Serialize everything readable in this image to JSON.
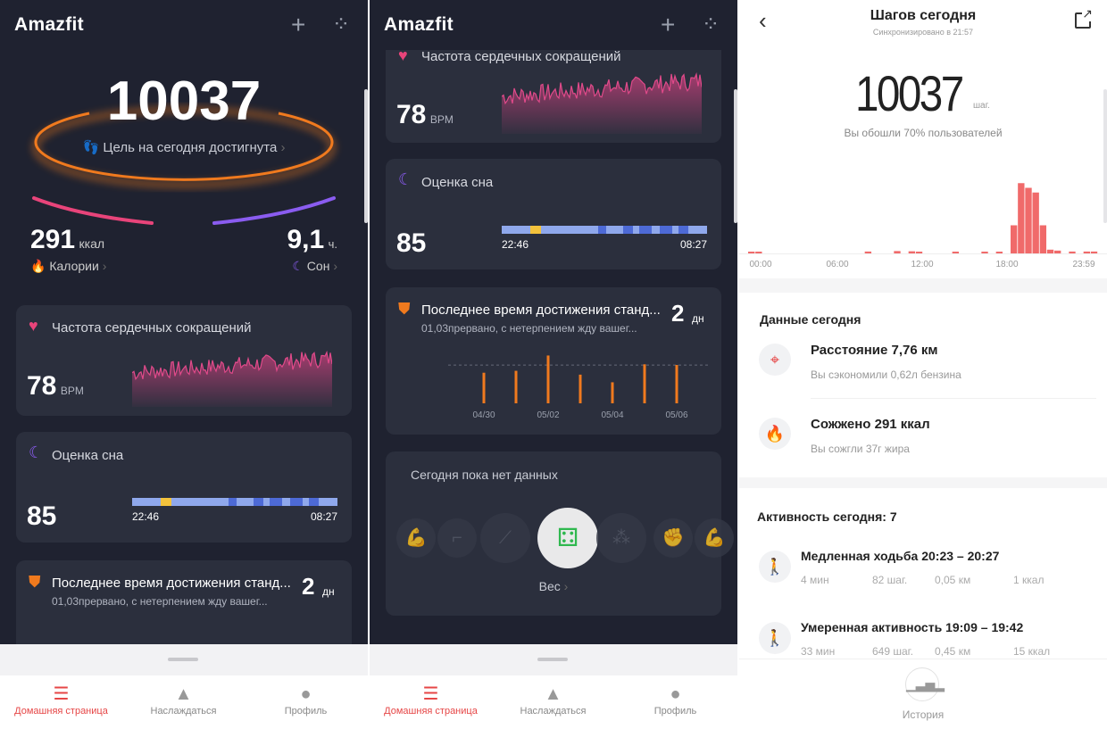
{
  "app": {
    "title": "Amazfit",
    "add_icon": "plus-icon",
    "grid_icon": "grid-icon"
  },
  "colors": {
    "accent": "#e64646",
    "orange": "#f07a1e",
    "purple": "#8a5cf0",
    "pink": "#e8447a",
    "card": "#2b2f3d",
    "bg": "#1f2230",
    "step_bar": "#f06a6a"
  },
  "home": {
    "steps": "10037",
    "goal_text": "Цель на сегодня достигнута",
    "calories": {
      "value": "291",
      "unit": "ккал",
      "label": "Калории"
    },
    "sleep": {
      "value": "9,1",
      "unit": "ч.",
      "label": "Сон"
    },
    "heart": {
      "title": "Частота сердечных сокращений",
      "value": "78",
      "unit": "BPM"
    },
    "sleep_card": {
      "title": "Оценка сна",
      "score": "85",
      "start": "22:46",
      "end": "08:27",
      "segments": [
        [
          "light",
          0.14
        ],
        [
          "awake",
          0.05
        ],
        [
          "light",
          0.28
        ],
        [
          "deep",
          0.04
        ],
        [
          "light",
          0.08
        ],
        [
          "deep",
          0.05
        ],
        [
          "light",
          0.03
        ],
        [
          "deep",
          0.06
        ],
        [
          "light",
          0.04
        ],
        [
          "deep",
          0.06
        ],
        [
          "light",
          0.03
        ],
        [
          "deep",
          0.05
        ],
        [
          "light",
          0.09
        ]
      ]
    },
    "streak": {
      "title": "Последнее время достижения станд...",
      "subtitle": "01,03прервано, с нетерпением жду вашег...",
      "value": "2",
      "unit": "дн"
    }
  },
  "chart_data": [
    {
      "type": "bar",
      "title": "",
      "categories": [
        "04/30",
        "05/01",
        "05/02",
        "05/03",
        "05/04",
        "05/05",
        "05/06"
      ],
      "tick_labels": [
        "04/30",
        "05/02",
        "05/04",
        "05/06"
      ],
      "values": [
        8000,
        8500,
        12500,
        7500,
        5500,
        10200,
        10037
      ],
      "goal": 10000,
      "ylim": [
        0,
        14000
      ]
    },
    {
      "type": "bar",
      "title": "",
      "x_tick_labels": [
        "00:00",
        "06:00",
        "12:00",
        "18:00",
        "23:59"
      ],
      "bin_minutes": 30,
      "values": [
        30,
        20,
        0,
        0,
        0,
        0,
        0,
        0,
        0,
        0,
        0,
        0,
        0,
        0,
        0,
        0,
        40,
        0,
        0,
        0,
        50,
        0,
        45,
        20,
        0,
        0,
        0,
        0,
        10,
        0,
        0,
        0,
        15,
        0,
        20,
        0,
        600,
        1500,
        1400,
        1300,
        600,
        80,
        60,
        0,
        40,
        0,
        40,
        40
      ]
    }
  ],
  "weight_card": {
    "title": "Сегодня пока нет данных",
    "label": "Вес",
    "icons": [
      "arm-icon",
      "squat-icon",
      "leg-icon",
      "scale-icon",
      "molecule-icon",
      "fist-icon",
      "arm-icon"
    ]
  },
  "nav": [
    {
      "label": "Домашняя страница",
      "icon": "home-stack-icon",
      "active": true
    },
    {
      "label": "Наслаждаться",
      "icon": "shapes-icon"
    },
    {
      "label": "Профиль",
      "icon": "profile-icon"
    }
  ],
  "steps_detail": {
    "title": "Шагов сегодня",
    "synced": "Синхронизировано в 21:57",
    "steps": "10037",
    "unit": "шаг.",
    "compare": "Вы обошли 70% пользователей",
    "data_title": "Данные сегодня",
    "data": [
      {
        "title": "Расстояние 7,76 км",
        "sub": "Вы сэкономили 0,62л бензина",
        "icon": "location-pin-icon"
      },
      {
        "title": "Сожжено 291 ккал",
        "sub": "Вы сожгли 37г жира",
        "icon": "flame-icon"
      }
    ],
    "activity_title": "Активность сегодня:",
    "activity_count": "7",
    "activities": [
      {
        "title": "Медленная ходьба 20:23 – 20:27",
        "stats": [
          "4 мин",
          "82 шаг.",
          "0,05 км",
          "1 ккал"
        ]
      },
      {
        "title": "Умеренная активность 19:09 – 19:42",
        "stats": [
          "33 мин",
          "649 шаг.",
          "0,45 км",
          "15 ккал"
        ]
      }
    ],
    "history_label": "История"
  }
}
